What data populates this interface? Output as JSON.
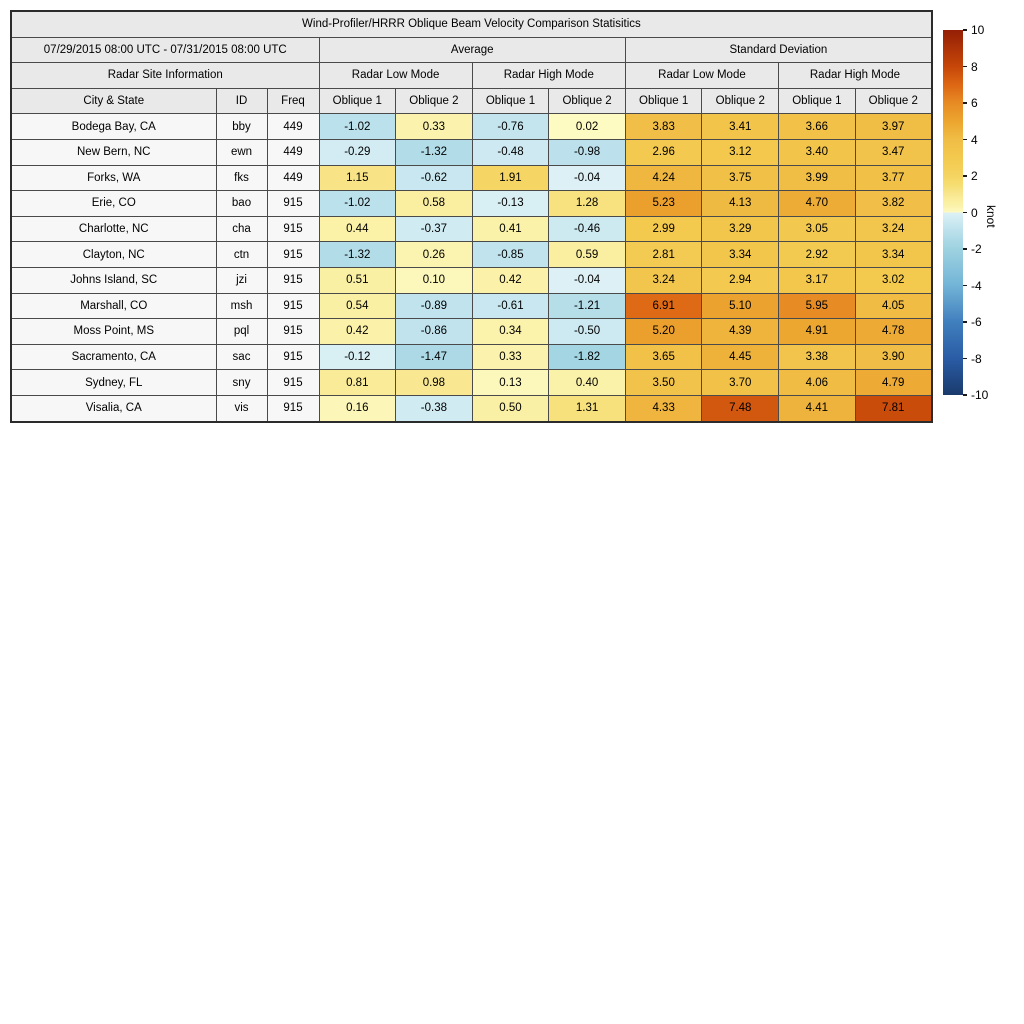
{
  "title": "Wind-Profiler/HRRR Oblique Beam Velocity Comparison Statisitics",
  "header": {
    "date_range": "07/29/2015 08:00 UTC - 07/31/2015 08:00 UTC",
    "average_label": "Average",
    "std_label": "Standard Deviation",
    "site_info_label": "Radar Site Information",
    "low_mode_label": "Radar Low Mode",
    "high_mode_label": "Radar High Mode",
    "city_label": "City & State",
    "id_label": "ID",
    "freq_label": "Freq",
    "oblique_labels": [
      "Oblique 1",
      "Oblique 2"
    ]
  },
  "chart_data": {
    "type": "heatmap",
    "title": "Wind-Profiler/HRRR Oblique Beam Velocity Comparison Statisitics",
    "value_columns": [
      "Average Radar Low Mode Oblique 1",
      "Average Radar Low Mode Oblique 2",
      "Average Radar High Mode Oblique 1",
      "Average Radar High Mode Oblique 2",
      "Std Dev Radar Low Mode Oblique 1",
      "Std Dev Radar Low Mode Oblique 2",
      "Std Dev Radar High Mode Oblique 1",
      "Std Dev Radar High Mode Oblique 2"
    ],
    "rows": [
      {
        "city": "Bodega Bay, CA",
        "id": "bby",
        "freq": "449",
        "values": [
          -1.02,
          0.33,
          -0.76,
          0.02,
          3.83,
          3.41,
          3.66,
          3.97
        ]
      },
      {
        "city": "New Bern, NC",
        "id": "ewn",
        "freq": "449",
        "values": [
          -0.29,
          -1.32,
          -0.48,
          -0.98,
          2.96,
          3.12,
          3.4,
          3.47
        ]
      },
      {
        "city": "Forks, WA",
        "id": "fks",
        "freq": "449",
        "values": [
          1.15,
          -0.62,
          1.91,
          -0.04,
          4.24,
          3.75,
          3.99,
          3.77
        ]
      },
      {
        "city": "Erie, CO",
        "id": "bao",
        "freq": "915",
        "values": [
          -1.02,
          0.58,
          -0.13,
          1.28,
          5.23,
          4.13,
          4.7,
          3.82
        ]
      },
      {
        "city": "Charlotte, NC",
        "id": "cha",
        "freq": "915",
        "values": [
          0.44,
          -0.37,
          0.41,
          -0.46,
          2.99,
          3.29,
          3.05,
          3.24
        ]
      },
      {
        "city": "Clayton, NC",
        "id": "ctn",
        "freq": "915",
        "values": [
          -1.32,
          0.26,
          -0.85,
          0.59,
          2.81,
          3.34,
          2.92,
          3.34
        ]
      },
      {
        "city": "Johns Island, SC",
        "id": "jzi",
        "freq": "915",
        "values": [
          0.51,
          0.1,
          0.42,
          -0.04,
          3.24,
          2.94,
          3.17,
          3.02
        ]
      },
      {
        "city": "Marshall, CO",
        "id": "msh",
        "freq": "915",
        "values": [
          0.54,
          -0.89,
          -0.61,
          -1.21,
          6.91,
          5.1,
          5.95,
          4.05
        ]
      },
      {
        "city": "Moss Point, MS",
        "id": "pql",
        "freq": "915",
        "values": [
          0.42,
          -0.86,
          0.34,
          -0.5,
          5.2,
          4.39,
          4.91,
          4.78
        ]
      },
      {
        "city": "Sacramento, CA",
        "id": "sac",
        "freq": "915",
        "values": [
          -0.12,
          -1.47,
          0.33,
          -1.82,
          3.65,
          4.45,
          3.38,
          3.9
        ]
      },
      {
        "city": "Sydney, FL",
        "id": "sny",
        "freq": "915",
        "values": [
          0.81,
          0.98,
          0.13,
          0.4,
          3.5,
          3.7,
          4.06,
          4.79
        ]
      },
      {
        "city": "Visalia, CA",
        "id": "vis",
        "freq": "915",
        "values": [
          0.16,
          -0.38,
          0.5,
          1.31,
          4.33,
          7.48,
          4.41,
          7.81
        ]
      }
    ],
    "colorbar": {
      "label": "knot",
      "min": -10,
      "max": 10,
      "ticks": [
        10,
        8,
        6,
        4,
        2,
        0,
        -2,
        -4,
        -6,
        -8,
        -10
      ],
      "colormap_anchors": [
        {
          "v": -10,
          "rgb": [
            26,
            58,
            108
          ]
        },
        {
          "v": -8,
          "rgb": [
            42,
            92,
            165
          ]
        },
        {
          "v": -6,
          "rgb": [
            64,
            127,
            190
          ]
        },
        {
          "v": -4,
          "rgb": [
            114,
            180,
            215
          ]
        },
        {
          "v": -2,
          "rgb": [
            158,
            210,
            224
          ]
        },
        {
          "v": -1.5,
          "rgb": [
            172,
            217,
            230
          ]
        },
        {
          "v": -1,
          "rgb": [
            188,
            225,
            236
          ]
        },
        {
          "v": -0.5,
          "rgb": [
            205,
            233,
            241
          ]
        },
        {
          "v": -0.1,
          "rgb": [
            217,
            239,
            244
          ]
        },
        {
          "v": -0.001,
          "rgb": [
            222,
            241,
            246
          ]
        },
        {
          "v": 0.001,
          "rgb": [
            253,
            250,
            195
          ]
        },
        {
          "v": 0.3,
          "rgb": [
            251,
            243,
            174
          ]
        },
        {
          "v": 0.6,
          "rgb": [
            250,
            239,
            160
          ]
        },
        {
          "v": 1,
          "rgb": [
            249,
            231,
            144
          ]
        },
        {
          "v": 1.5,
          "rgb": [
            246,
            222,
            114
          ]
        },
        {
          "v": 2,
          "rgb": [
            245,
            212,
            97
          ]
        },
        {
          "v": 3,
          "rgb": [
            243,
            201,
            78
          ]
        },
        {
          "v": 4,
          "rgb": [
            240,
            189,
            69
          ]
        },
        {
          "v": 5,
          "rgb": [
            236,
            165,
            47
          ]
        },
        {
          "v": 6,
          "rgb": [
            231,
            139,
            36
          ]
        },
        {
          "v": 7,
          "rgb": [
            221,
            103,
            20
          ]
        },
        {
          "v": 8,
          "rgb": [
            198,
            70,
            9
          ]
        },
        {
          "v": 10,
          "rgb": [
            148,
            31,
            6
          ]
        }
      ]
    },
    "header_bg": "#e9e9e9",
    "site_cell_bg": "#f7f7f7"
  }
}
